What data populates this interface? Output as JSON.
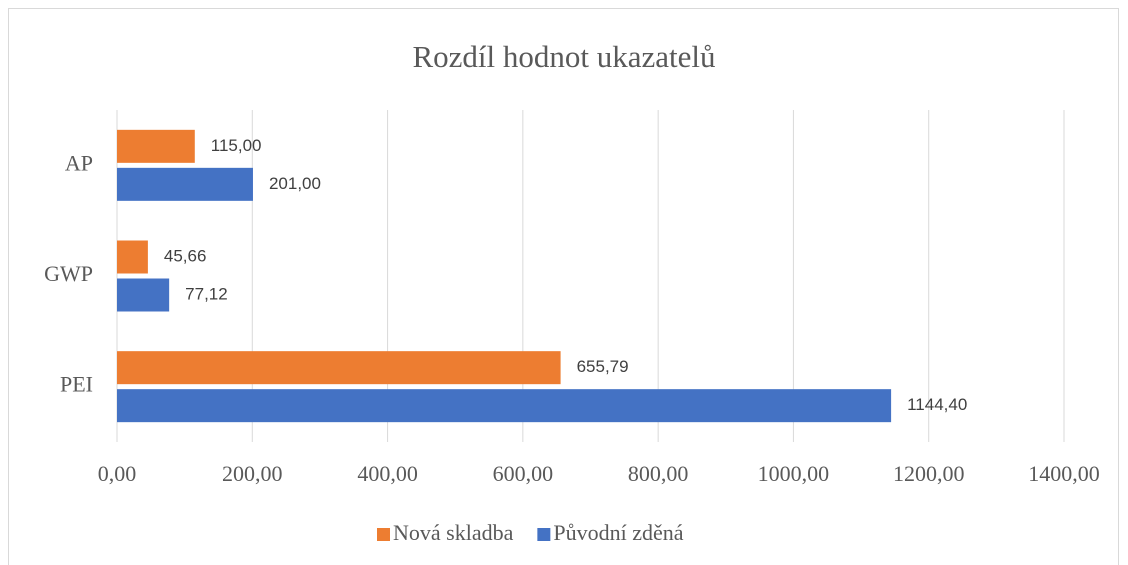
{
  "chart_data": {
    "type": "barh",
    "title": "Rozdíl hodnot ukazatelů",
    "categories": [
      "AP",
      "GWP",
      "PEI"
    ],
    "series": [
      {
        "name": "Nová skladba",
        "color": "#ed7d31",
        "values": [
          115.0,
          45.66,
          655.79
        ],
        "value_labels": [
          "115,00",
          "45,66",
          "655,79"
        ]
      },
      {
        "name": "Původní zděná",
        "color": "#4472c4",
        "values": [
          201.0,
          77.12,
          1144.4
        ],
        "value_labels": [
          "201,00",
          "77,12",
          "1144,40"
        ]
      }
    ],
    "xlim": [
      0,
      1400
    ],
    "xticks": [
      {
        "value": 0,
        "label": "0,00"
      },
      {
        "value": 200,
        "label": "200,00"
      },
      {
        "value": 400,
        "label": "400,00"
      },
      {
        "value": 600,
        "label": "600,00"
      },
      {
        "value": 800,
        "label": "800,00"
      },
      {
        "value": 1000,
        "label": "1000,00"
      },
      {
        "value": 1200,
        "label": "1200,00"
      },
      {
        "value": 1400,
        "label": "1400,00"
      }
    ],
    "grid": true,
    "legend": "bottom"
  }
}
